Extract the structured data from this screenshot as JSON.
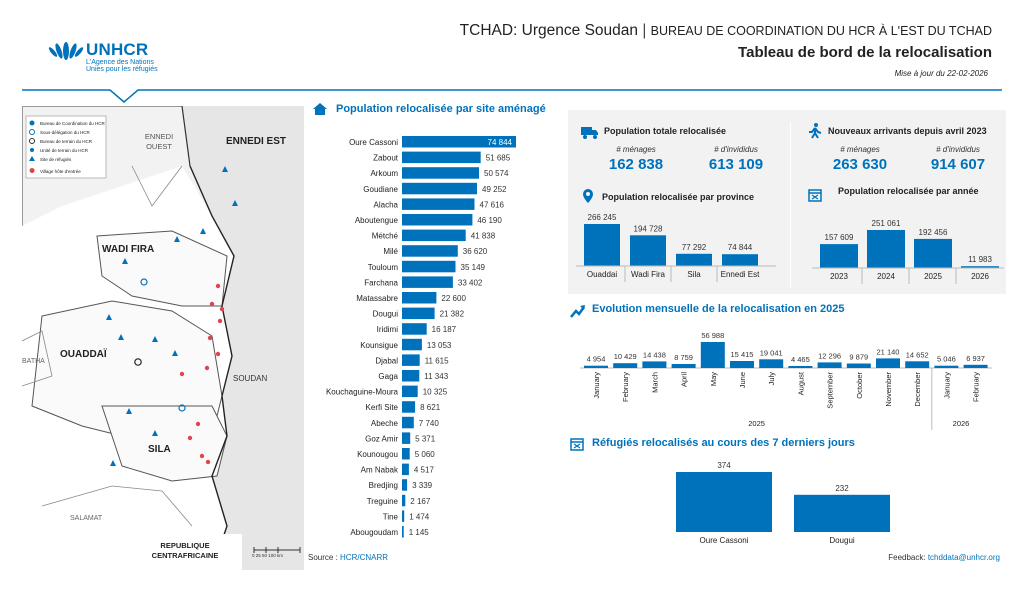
{
  "header": {
    "title_main": "TCHAD: Urgence Soudan",
    "title_sep": "|",
    "title_bureau": "BUREAU DE COORDINATION DU HCR À L'EST DU TCHAD",
    "subtitle": "Tableau de bord de la relocalisation",
    "update": "Mise à jour du 22-02-2026"
  },
  "logo": {
    "name": "UNHCR",
    "line1": "L'Agence des Nations",
    "line2": "Unies pour les réfugiés"
  },
  "map": {
    "legend": [
      "Bureau de Coordination du HCR",
      "Sous-délégation du HCR",
      "Bureau de terrain du HCR",
      "Unité de terrain du HCR",
      "Site de réfugiés",
      "Village hôte d'entrée"
    ],
    "regions": [
      "ENNEDI OUEST",
      "ENNEDI EST",
      "WADI FIRA",
      "OUADDAÏ",
      "SILA",
      "SOUDAN",
      "BATHA",
      "SALAMAT",
      "REPUBLIQUE CENTRAFRICAINE"
    ],
    "scale": "0 25 50 100 km"
  },
  "colors": {
    "brand": "#0072bc",
    "bar": "#0072bc",
    "map_dot": "#e0454f"
  },
  "sections": {
    "by_site": "Population relocalisée par site aménagé",
    "total": "Population totale relocalisée",
    "new_arrivals": "Nouveaux arrivants depuis avril 2023",
    "by_province": "Population relocalisée par province",
    "by_year": "Population relocalisée par année",
    "monthly": "Evolution mensuelle de la relocalisation en 2025",
    "last7": "Réfugiés relocalisés au cours des 7 derniers jours"
  },
  "kpis": {
    "households_label": "# ménages",
    "individuals_label": "# d'invididus",
    "total_households": "162 838",
    "total_individuals": "613 109",
    "new_households": "263 630",
    "new_individuals": "914 607"
  },
  "footer": {
    "source_label": "Source :",
    "source_value": "HCR/CNARR",
    "feedback_label": "Feedback:",
    "feedback_value": "tchddata@unhcr.org"
  },
  "chart_data": [
    {
      "type": "bar",
      "orientation": "horizontal",
      "title": "Population relocalisée par site aménagé",
      "categories": [
        "Oure Cassoni",
        "Zabout",
        "Arkoum",
        "Goudiane",
        "Alacha",
        "Aboutengue",
        "Métché",
        "Milé",
        "Touloum",
        "Farchana",
        "Matassabre",
        "Dougui",
        "Iridimi",
        "Kounsigue",
        "Djabal",
        "Gaga",
        "Kouchaguine-Moura",
        "Kerfi Site",
        "Abeche",
        "Goz Amir",
        "Kounougou",
        "Am Nabak",
        "Bredjing",
        "Treguine",
        "Tine",
        "Abougoudam"
      ],
      "values": [
        74844,
        51685,
        50574,
        49252,
        47616,
        46190,
        41838,
        36620,
        35149,
        33402,
        22600,
        21382,
        16187,
        13053,
        11615,
        11343,
        10325,
        8621,
        7740,
        5371,
        5060,
        4517,
        3339,
        2167,
        1474,
        1145
      ],
      "labels": [
        "74 844",
        "51 685",
        "50 574",
        "49 252",
        "47 616",
        "46 190",
        "41 838",
        "36 620",
        "35 149",
        "33 402",
        "22 600",
        "21 382",
        "16 187",
        "13 053",
        "11 615",
        "11 343",
        "10 325",
        "8 621",
        "7 740",
        "5 371",
        "5 060",
        "4 517",
        "3 339",
        "2 167",
        "1 474",
        "1 145"
      ]
    },
    {
      "type": "bar",
      "title": "Population relocalisée par province",
      "categories": [
        "Ouaddai",
        "Wadi Fira",
        "Sila",
        "Ennedi Est"
      ],
      "values": [
        266245,
        194728,
        77292,
        74844
      ],
      "labels": [
        "266 245",
        "194 728",
        "77 292",
        "74 844"
      ]
    },
    {
      "type": "bar",
      "title": "Population relocalisée par année",
      "categories": [
        "2023",
        "2024",
        "2025",
        "2026"
      ],
      "values": [
        157609,
        251061,
        192456,
        11983
      ],
      "labels": [
        "157 609",
        "251 061",
        "192 456",
        "11 983"
      ]
    },
    {
      "type": "bar",
      "title": "Evolution mensuelle de la relocalisation en 2025",
      "categories": [
        "January",
        "February",
        "March",
        "April",
        "May",
        "June",
        "July",
        "August",
        "September",
        "October",
        "November",
        "December",
        "January",
        "February"
      ],
      "groups": [
        {
          "label": "2025",
          "count": 12
        },
        {
          "label": "2026",
          "count": 2
        }
      ],
      "values": [
        4954,
        10429,
        14438,
        8759,
        56988,
        15415,
        19041,
        4465,
        12296,
        9879,
        21140,
        14652,
        5046,
        6937
      ],
      "labels": [
        "4 954",
        "10 429",
        "14 438",
        "8 759",
        "56 988",
        "15 415",
        "19 041",
        "4 465",
        "12 296",
        "9 879",
        "21 140",
        "14 652",
        "5 046",
        "6 937"
      ]
    },
    {
      "type": "bar",
      "title": "Réfugiés relocalisés au cours des 7 derniers jours",
      "categories": [
        "Oure Cassoni",
        "Dougui"
      ],
      "values": [
        374,
        232
      ],
      "labels": [
        "374",
        "232"
      ]
    }
  ]
}
